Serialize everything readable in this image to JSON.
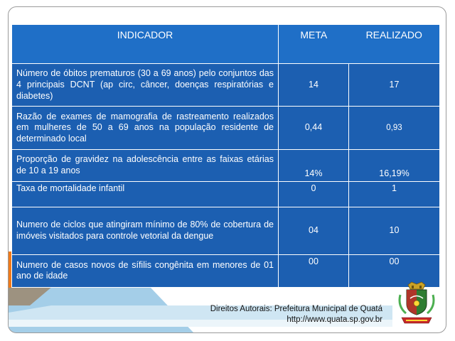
{
  "table": {
    "headers": {
      "indicator": "INDICADOR",
      "meta": "META",
      "realizado": "REALIZADO"
    },
    "rows": [
      {
        "indicator": "Número de óbitos prematuros (30 a 69 anos) pelo conjuntos das 4 principais DCNT (ap circ, câncer, doenças respiratórias e diabetes)",
        "meta": "14",
        "realizado": "17"
      },
      {
        "indicator": "Razão de exames de mamografia de rastreamento realizados em mulheres de 50 a 69 anos na população residente de determinado local",
        "meta": "0,44",
        "realizado": "0,93"
      },
      {
        "indicator": "Proporção de gravidez na adolescência entre as faixas etárias de 10 a 19 anos",
        "meta": "14%",
        "realizado": "16,19%"
      },
      {
        "indicator": "Taxa de mortalidade infantil",
        "meta": "0",
        "realizado": "1"
      },
      {
        "indicator": "Numero de ciclos que atingiram mínimo de 80% de cobertura de imóveis visitados para controle vetorial da dengue",
        "meta": "04",
        "realizado": "10"
      },
      {
        "indicator": "Numero de casos novos de sífilis congênita em menores de 01 ano de idade",
        "meta": "00",
        "realizado": "00"
      }
    ]
  },
  "footer": {
    "line1": "Direitos Autorais: Prefeitura Municipal de Quatá",
    "line2": "http://www.quata.sp.gov.br"
  },
  "colors": {
    "header_bg": "#1f6fc7",
    "cell_bg": "#1c5fb1",
    "accent_orange": "#f07a1a",
    "accent_blue": "#5aa6d6"
  },
  "icons": {
    "crest": "municipal-coat-of-arms"
  }
}
